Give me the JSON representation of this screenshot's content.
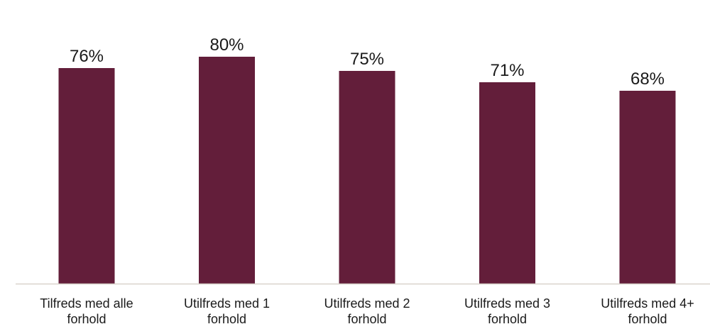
{
  "chart_data": {
    "type": "bar",
    "categories": [
      [
        "Tilfreds med alle",
        "forhold"
      ],
      [
        "Utilfreds med 1",
        "forhold"
      ],
      [
        "Utilfreds med 2",
        "forhold"
      ],
      [
        "Utilfreds med 3",
        "forhold"
      ],
      [
        "Utilfreds med 4+",
        "forhold"
      ]
    ],
    "values": [
      76,
      80,
      75,
      71,
      68
    ],
    "value_labels": [
      "76%",
      "80%",
      "75%",
      "71%",
      "68%"
    ],
    "ylim": [
      0,
      100
    ],
    "grid": false,
    "legend": "none",
    "colors": {
      "bar": "#631e3a",
      "axis": "#d9d4cc",
      "text": "#1a1a1a"
    }
  }
}
